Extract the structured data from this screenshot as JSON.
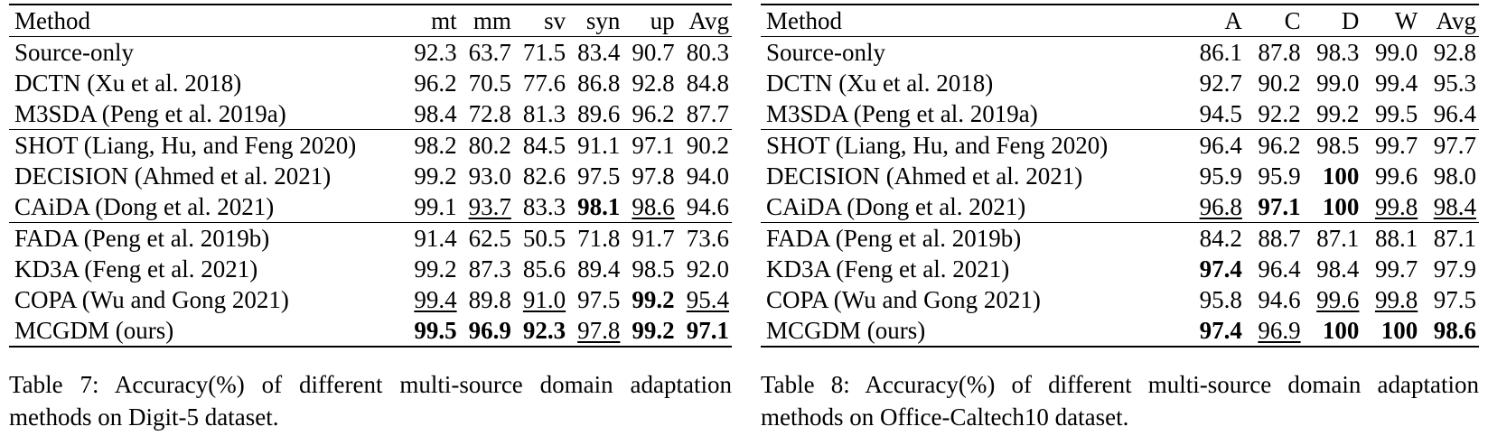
{
  "tables": [
    {
      "id": "table7",
      "headers": [
        "Method",
        "mt",
        "mm",
        "sv",
        "syn",
        "up",
        "Avg"
      ],
      "groups": [
        [
          {
            "method": "Source-only",
            "cells": [
              {
                "v": "92.3"
              },
              {
                "v": "63.7"
              },
              {
                "v": "71.5"
              },
              {
                "v": "83.4"
              },
              {
                "v": "90.7"
              },
              {
                "v": "80.3"
              }
            ]
          },
          {
            "method": "DCTN (Xu et al. 2018)",
            "cells": [
              {
                "v": "96.2"
              },
              {
                "v": "70.5"
              },
              {
                "v": "77.6"
              },
              {
                "v": "86.8"
              },
              {
                "v": "92.8"
              },
              {
                "v": "84.8"
              }
            ]
          },
          {
            "method": "M3SDA (Peng et al. 2019a)",
            "cells": [
              {
                "v": "98.4"
              },
              {
                "v": "72.8"
              },
              {
                "v": "81.3"
              },
              {
                "v": "89.6"
              },
              {
                "v": "96.2"
              },
              {
                "v": "87.7"
              }
            ]
          }
        ],
        [
          {
            "method": "SHOT (Liang, Hu, and Feng 2020)",
            "cells": [
              {
                "v": "98.2"
              },
              {
                "v": "80.2"
              },
              {
                "v": "84.5"
              },
              {
                "v": "91.1"
              },
              {
                "v": "97.1"
              },
              {
                "v": "90.2"
              }
            ]
          },
          {
            "method": "DECISION (Ahmed et al. 2021)",
            "cells": [
              {
                "v": "99.2"
              },
              {
                "v": "93.0"
              },
              {
                "v": "82.6"
              },
              {
                "v": "97.5"
              },
              {
                "v": "97.8"
              },
              {
                "v": "94.0"
              }
            ]
          },
          {
            "method": "CAiDA (Dong et al. 2021)",
            "cells": [
              {
                "v": "99.1"
              },
              {
                "v": "93.7",
                "u": true
              },
              {
                "v": "83.3"
              },
              {
                "v": "98.1",
                "b": true
              },
              {
                "v": "98.6",
                "u": true
              },
              {
                "v": "94.6"
              }
            ]
          }
        ],
        [
          {
            "method": "FADA (Peng et al. 2019b)",
            "cells": [
              {
                "v": "91.4"
              },
              {
                "v": "62.5"
              },
              {
                "v": "50.5"
              },
              {
                "v": "71.8"
              },
              {
                "v": "91.7"
              },
              {
                "v": "73.6"
              }
            ]
          },
          {
            "method": "KD3A (Feng et al. 2021)",
            "cells": [
              {
                "v": "99.2"
              },
              {
                "v": "87.3"
              },
              {
                "v": "85.6"
              },
              {
                "v": "89.4"
              },
              {
                "v": "98.5"
              },
              {
                "v": "92.0"
              }
            ]
          },
          {
            "method": "COPA (Wu and Gong 2021)",
            "cells": [
              {
                "v": "99.4",
                "u": true
              },
              {
                "v": "89.8"
              },
              {
                "v": "91.0",
                "u": true
              },
              {
                "v": "97.5"
              },
              {
                "v": "99.2",
                "b": true
              },
              {
                "v": "95.4",
                "u": true
              }
            ]
          },
          {
            "method": "MCGDM (ours)",
            "cells": [
              {
                "v": "99.5",
                "b": true
              },
              {
                "v": "96.9",
                "b": true
              },
              {
                "v": "92.3",
                "b": true
              },
              {
                "v": "97.8",
                "u": true
              },
              {
                "v": "99.2",
                "b": true
              },
              {
                "v": "97.1",
                "b": true
              }
            ]
          }
        ]
      ],
      "caption": "Table 7: Accuracy(%) of different multi-source domain adaptation methods on Digit-5 dataset."
    },
    {
      "id": "table8",
      "headers": [
        "Method",
        "A",
        "C",
        "D",
        "W",
        "Avg"
      ],
      "groups": [
        [
          {
            "method": "Source-only",
            "cells": [
              {
                "v": "86.1"
              },
              {
                "v": "87.8"
              },
              {
                "v": "98.3"
              },
              {
                "v": "99.0"
              },
              {
                "v": "92.8"
              }
            ]
          },
          {
            "method": "DCTN (Xu et al. 2018)",
            "cells": [
              {
                "v": "92.7"
              },
              {
                "v": "90.2"
              },
              {
                "v": "99.0"
              },
              {
                "v": "99.4"
              },
              {
                "v": "95.3"
              }
            ]
          },
          {
            "method": "M3SDA (Peng et al. 2019a)",
            "cells": [
              {
                "v": "94.5"
              },
              {
                "v": "92.2"
              },
              {
                "v": "99.2"
              },
              {
                "v": "99.5"
              },
              {
                "v": "96.4"
              }
            ]
          }
        ],
        [
          {
            "method": "SHOT (Liang, Hu, and Feng 2020)",
            "cells": [
              {
                "v": "96.4"
              },
              {
                "v": "96.2"
              },
              {
                "v": "98.5"
              },
              {
                "v": "99.7"
              },
              {
                "v": "97.7"
              }
            ]
          },
          {
            "method": "DECISION (Ahmed et al. 2021)",
            "cells": [
              {
                "v": "95.9"
              },
              {
                "v": "95.9"
              },
              {
                "v": "100",
                "b": true
              },
              {
                "v": "99.6"
              },
              {
                "v": "98.0"
              }
            ]
          },
          {
            "method": "CAiDA (Dong et al. 2021)",
            "cells": [
              {
                "v": "96.8",
                "u": true
              },
              {
                "v": "97.1",
                "b": true
              },
              {
                "v": "100",
                "b": true
              },
              {
                "v": "99.8",
                "u": true
              },
              {
                "v": "98.4",
                "u": true
              }
            ]
          }
        ],
        [
          {
            "method": "FADA (Peng et al. 2019b)",
            "cells": [
              {
                "v": "84.2"
              },
              {
                "v": "88.7"
              },
              {
                "v": "87.1"
              },
              {
                "v": "88.1"
              },
              {
                "v": "87.1"
              }
            ]
          },
          {
            "method": "KD3A (Feng et al. 2021)",
            "cells": [
              {
                "v": "97.4",
                "b": true
              },
              {
                "v": "96.4"
              },
              {
                "v": "98.4"
              },
              {
                "v": "99.7"
              },
              {
                "v": "97.9"
              }
            ]
          },
          {
            "method": "COPA (Wu and Gong 2021)",
            "cells": [
              {
                "v": "95.8"
              },
              {
                "v": "94.6"
              },
              {
                "v": "99.6",
                "u": true
              },
              {
                "v": "99.8",
                "u": true
              },
              {
                "v": "97.5"
              }
            ]
          },
          {
            "method": "MCGDM (ours)",
            "cells": [
              {
                "v": "97.4",
                "b": true
              },
              {
                "v": "96.9",
                "u": true
              },
              {
                "v": "100",
                "b": true
              },
              {
                "v": "100",
                "b": true
              },
              {
                "v": "98.6",
                "b": true
              }
            ]
          }
        ]
      ],
      "caption": "Table 8: Accuracy(%) of different multi-source domain adaptation methods on Office-Caltech10 dataset."
    }
  ]
}
